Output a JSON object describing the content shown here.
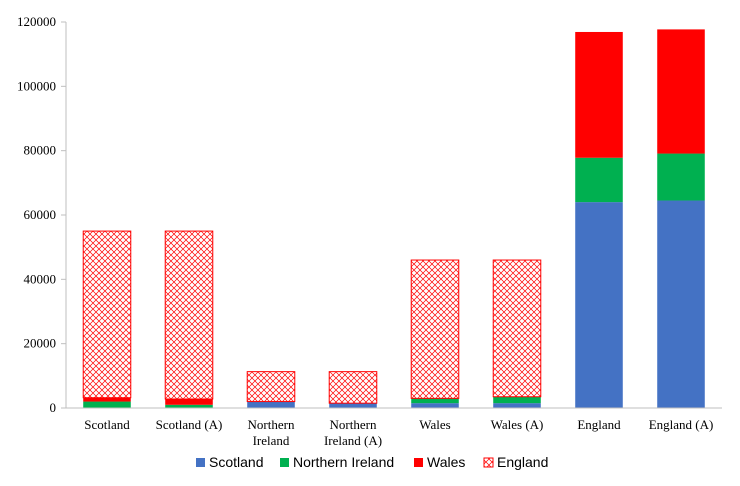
{
  "chart_data": {
    "type": "bar",
    "stacked": true,
    "title": "",
    "xlabel": "",
    "ylabel": "",
    "ylim": [
      0,
      120000
    ],
    "yticks": [
      0,
      20000,
      40000,
      60000,
      80000,
      100000,
      120000
    ],
    "grid": false,
    "legend_position": "bottom",
    "categories": [
      [
        "Scotland"
      ],
      [
        "Scotland (A)"
      ],
      [
        "Northern",
        "Ireland"
      ],
      [
        "Northern",
        "Ireland (A)"
      ],
      [
        "Wales"
      ],
      [
        "Wales (A)"
      ],
      [
        "England"
      ],
      [
        "England (A)"
      ]
    ],
    "series": [
      {
        "name": "Scotland",
        "color": "#4472c4",
        "pattern": "solid",
        "values": [
          0,
          0,
          2000,
          1500,
          1500,
          1500,
          64000,
          64500
        ]
      },
      {
        "name": "Northern Ireland",
        "color": "#00b050",
        "pattern": "solid",
        "values": [
          2000,
          1000,
          0,
          0,
          1500,
          2000,
          13800,
          14600
        ]
      },
      {
        "name": "Wales",
        "color": "#ff0000",
        "pattern": "solid",
        "values": [
          1200,
          1800,
          0,
          0,
          0,
          0,
          39100,
          38600
        ]
      },
      {
        "name": "England",
        "color": "#ff0000",
        "pattern": "crosshatch",
        "values": [
          51800,
          52200,
          9300,
          9800,
          43000,
          42500,
          0,
          0
        ]
      }
    ]
  }
}
